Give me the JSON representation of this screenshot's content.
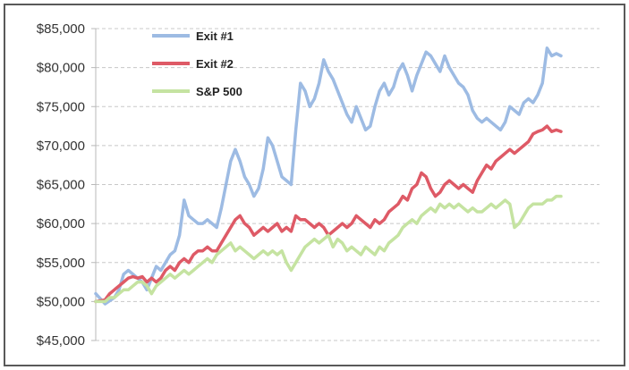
{
  "chart_data": {
    "type": "line",
    "title": "",
    "xlabel": "",
    "ylabel": "",
    "ylim": [
      45000,
      85000
    ],
    "y_ticks": [
      45000,
      50000,
      55000,
      60000,
      65000,
      70000,
      75000,
      80000,
      85000
    ],
    "y_tick_labels": [
      "$45,000",
      "$50,000",
      "$55,000",
      "$60,000",
      "$65,000",
      "$70,000",
      "$75,000",
      "$80,000",
      "$85,000"
    ],
    "grid": true,
    "legend_position": "top-left",
    "x_axis_labels": "none",
    "x_range": [
      0,
      100
    ],
    "series": [
      {
        "name": "Exit #1",
        "color": "#9dbbe3",
        "points": [
          [
            0,
            51000
          ],
          [
            2,
            49700
          ],
          [
            4,
            50500
          ],
          [
            5,
            51500
          ],
          [
            6,
            53500
          ],
          [
            7,
            54000
          ],
          [
            9,
            53000
          ],
          [
            10,
            52500
          ],
          [
            11,
            51500
          ],
          [
            12,
            53000
          ],
          [
            13,
            54500
          ],
          [
            14,
            54000
          ],
          [
            15,
            55000
          ],
          [
            16,
            56000
          ],
          [
            17,
            56500
          ],
          [
            18,
            58500
          ],
          [
            19,
            63000
          ],
          [
            20,
            61000
          ],
          [
            21,
            60500
          ],
          [
            22,
            60000
          ],
          [
            23,
            60000
          ],
          [
            24,
            60500
          ],
          [
            25,
            60000
          ],
          [
            26,
            59500
          ],
          [
            27,
            62000
          ],
          [
            28,
            65000
          ],
          [
            29,
            68000
          ],
          [
            30,
            69500
          ],
          [
            31,
            68000
          ],
          [
            32,
            66000
          ],
          [
            33,
            65000
          ],
          [
            34,
            63500
          ],
          [
            35,
            64500
          ],
          [
            36,
            67000
          ],
          [
            37,
            71000
          ],
          [
            38,
            70000
          ],
          [
            39,
            68000
          ],
          [
            40,
            66000
          ],
          [
            41,
            65500
          ],
          [
            42,
            65000
          ],
          [
            43,
            72000
          ],
          [
            44,
            78000
          ],
          [
            45,
            77000
          ],
          [
            46,
            75000
          ],
          [
            47,
            76000
          ],
          [
            48,
            78000
          ],
          [
            49,
            81000
          ],
          [
            50,
            79500
          ],
          [
            51,
            78500
          ],
          [
            52,
            77000
          ],
          [
            53,
            75500
          ],
          [
            54,
            74000
          ],
          [
            55,
            73000
          ],
          [
            56,
            75000
          ],
          [
            57,
            73500
          ],
          [
            58,
            72000
          ],
          [
            59,
            72500
          ],
          [
            60,
            75000
          ],
          [
            61,
            77000
          ],
          [
            62,
            78000
          ],
          [
            63,
            76500
          ],
          [
            64,
            77500
          ],
          [
            65,
            79500
          ],
          [
            66,
            80500
          ],
          [
            67,
            79000
          ],
          [
            68,
            77000
          ],
          [
            69,
            79000
          ],
          [
            70,
            80500
          ],
          [
            71,
            82000
          ],
          [
            72,
            81500
          ],
          [
            73,
            80500
          ],
          [
            74,
            79500
          ],
          [
            75,
            81500
          ],
          [
            76,
            80000
          ],
          [
            77,
            79000
          ],
          [
            78,
            78000
          ],
          [
            79,
            77500
          ],
          [
            80,
            76500
          ],
          [
            81,
            74500
          ],
          [
            82,
            73500
          ],
          [
            83,
            73000
          ],
          [
            84,
            73500
          ],
          [
            85,
            73000
          ],
          [
            86,
            72500
          ],
          [
            87,
            72000
          ],
          [
            88,
            73000
          ],
          [
            89,
            75000
          ],
          [
            90,
            74500
          ],
          [
            91,
            74000
          ],
          [
            92,
            75500
          ],
          [
            93,
            76000
          ],
          [
            94,
            75500
          ],
          [
            95,
            76500
          ],
          [
            96,
            78000
          ],
          [
            97,
            82500
          ],
          [
            98,
            81500
          ],
          [
            99,
            81800
          ],
          [
            100,
            81500
          ]
        ]
      },
      {
        "name": "Exit #2",
        "color": "#de5a66",
        "points": [
          [
            0,
            50000
          ],
          [
            2,
            50200
          ],
          [
            3,
            51000
          ],
          [
            4,
            51500
          ],
          [
            5,
            52000
          ],
          [
            6,
            52500
          ],
          [
            7,
            53000
          ],
          [
            8,
            53200
          ],
          [
            9,
            53000
          ],
          [
            10,
            53200
          ],
          [
            11,
            52500
          ],
          [
            12,
            53000
          ],
          [
            13,
            52500
          ],
          [
            14,
            53000
          ],
          [
            15,
            54000
          ],
          [
            16,
            54500
          ],
          [
            17,
            54000
          ],
          [
            18,
            55000
          ],
          [
            19,
            55500
          ],
          [
            20,
            55000
          ],
          [
            21,
            56000
          ],
          [
            22,
            56500
          ],
          [
            23,
            56500
          ],
          [
            24,
            57000
          ],
          [
            25,
            56500
          ],
          [
            26,
            56500
          ],
          [
            27,
            57500
          ],
          [
            28,
            58500
          ],
          [
            29,
            59500
          ],
          [
            30,
            60500
          ],
          [
            31,
            61000
          ],
          [
            32,
            60000
          ],
          [
            33,
            59500
          ],
          [
            34,
            58500
          ],
          [
            35,
            59000
          ],
          [
            36,
            59500
          ],
          [
            37,
            59000
          ],
          [
            38,
            59500
          ],
          [
            39,
            60000
          ],
          [
            40,
            59000
          ],
          [
            41,
            59500
          ],
          [
            42,
            59000
          ],
          [
            43,
            61000
          ],
          [
            44,
            60500
          ],
          [
            45,
            60500
          ],
          [
            46,
            60000
          ],
          [
            47,
            59500
          ],
          [
            48,
            60000
          ],
          [
            49,
            59500
          ],
          [
            50,
            58500
          ],
          [
            51,
            59000
          ],
          [
            52,
            59500
          ],
          [
            53,
            60000
          ],
          [
            54,
            59500
          ],
          [
            55,
            60000
          ],
          [
            56,
            61000
          ],
          [
            57,
            60500
          ],
          [
            58,
            60000
          ],
          [
            59,
            59500
          ],
          [
            60,
            60500
          ],
          [
            61,
            60000
          ],
          [
            62,
            60500
          ],
          [
            63,
            61500
          ],
          [
            64,
            62000
          ],
          [
            65,
            62500
          ],
          [
            66,
            63500
          ],
          [
            67,
            63000
          ],
          [
            68,
            64500
          ],
          [
            69,
            65000
          ],
          [
            70,
            66500
          ],
          [
            71,
            66000
          ],
          [
            72,
            64500
          ],
          [
            73,
            63500
          ],
          [
            74,
            64000
          ],
          [
            75,
            65000
          ],
          [
            76,
            65500
          ],
          [
            77,
            65000
          ],
          [
            78,
            64500
          ],
          [
            79,
            65000
          ],
          [
            80,
            64500
          ],
          [
            81,
            64000
          ],
          [
            82,
            65500
          ],
          [
            83,
            66500
          ],
          [
            84,
            67500
          ],
          [
            85,
            67000
          ],
          [
            86,
            68000
          ],
          [
            87,
            68500
          ],
          [
            88,
            69000
          ],
          [
            89,
            69500
          ],
          [
            90,
            69000
          ],
          [
            91,
            69500
          ],
          [
            92,
            70000
          ],
          [
            93,
            70500
          ],
          [
            94,
            71500
          ],
          [
            95,
            71800
          ],
          [
            96,
            72000
          ],
          [
            97,
            72500
          ],
          [
            98,
            71800
          ],
          [
            99,
            72000
          ],
          [
            100,
            71800
          ]
        ]
      },
      {
        "name": "S&P 500",
        "color": "#c5e3a1",
        "points": [
          [
            0,
            50000
          ],
          [
            2,
            50000
          ],
          [
            3,
            50500
          ],
          [
            4,
            50500
          ],
          [
            5,
            51000
          ],
          [
            6,
            51500
          ],
          [
            7,
            51500
          ],
          [
            8,
            52000
          ],
          [
            9,
            52500
          ],
          [
            10,
            52500
          ],
          [
            11,
            52000
          ],
          [
            12,
            51000
          ],
          [
            13,
            52000
          ],
          [
            14,
            52500
          ],
          [
            15,
            53000
          ],
          [
            16,
            53500
          ],
          [
            17,
            53000
          ],
          [
            18,
            53500
          ],
          [
            19,
            54000
          ],
          [
            20,
            53500
          ],
          [
            21,
            54000
          ],
          [
            22,
            54500
          ],
          [
            23,
            55000
          ],
          [
            24,
            55500
          ],
          [
            25,
            55000
          ],
          [
            26,
            56000
          ],
          [
            27,
            56500
          ],
          [
            28,
            57000
          ],
          [
            29,
            57500
          ],
          [
            30,
            56500
          ],
          [
            31,
            57000
          ],
          [
            32,
            56500
          ],
          [
            33,
            56000
          ],
          [
            34,
            55500
          ],
          [
            35,
            56000
          ],
          [
            36,
            56500
          ],
          [
            37,
            56000
          ],
          [
            38,
            56500
          ],
          [
            39,
            56000
          ],
          [
            40,
            56500
          ],
          [
            41,
            55000
          ],
          [
            42,
            54000
          ],
          [
            43,
            55000
          ],
          [
            44,
            56000
          ],
          [
            45,
            57000
          ],
          [
            46,
            57500
          ],
          [
            47,
            58000
          ],
          [
            48,
            57500
          ],
          [
            49,
            58000
          ],
          [
            50,
            58500
          ],
          [
            51,
            57000
          ],
          [
            52,
            58000
          ],
          [
            53,
            57500
          ],
          [
            54,
            56500
          ],
          [
            55,
            57000
          ],
          [
            56,
            56500
          ],
          [
            57,
            56000
          ],
          [
            58,
            57000
          ],
          [
            59,
            56500
          ],
          [
            60,
            56000
          ],
          [
            61,
            57000
          ],
          [
            62,
            56500
          ],
          [
            63,
            57500
          ],
          [
            64,
            58000
          ],
          [
            65,
            58500
          ],
          [
            66,
            59500
          ],
          [
            67,
            60000
          ],
          [
            68,
            60500
          ],
          [
            69,
            60000
          ],
          [
            70,
            61000
          ],
          [
            71,
            61500
          ],
          [
            72,
            62000
          ],
          [
            73,
            61500
          ],
          [
            74,
            62500
          ],
          [
            75,
            62000
          ],
          [
            76,
            62500
          ],
          [
            77,
            62000
          ],
          [
            78,
            62500
          ],
          [
            79,
            62000
          ],
          [
            80,
            61500
          ],
          [
            81,
            62000
          ],
          [
            82,
            61500
          ],
          [
            83,
            61500
          ],
          [
            84,
            62000
          ],
          [
            85,
            62500
          ],
          [
            86,
            62000
          ],
          [
            87,
            62500
          ],
          [
            88,
            63000
          ],
          [
            89,
            62500
          ],
          [
            90,
            59500
          ],
          [
            91,
            60000
          ],
          [
            92,
            61000
          ],
          [
            93,
            62000
          ],
          [
            94,
            62500
          ],
          [
            95,
            62500
          ],
          [
            96,
            62500
          ],
          [
            97,
            63000
          ],
          [
            98,
            63000
          ],
          [
            99,
            63500
          ],
          [
            100,
            63500
          ]
        ]
      }
    ]
  }
}
